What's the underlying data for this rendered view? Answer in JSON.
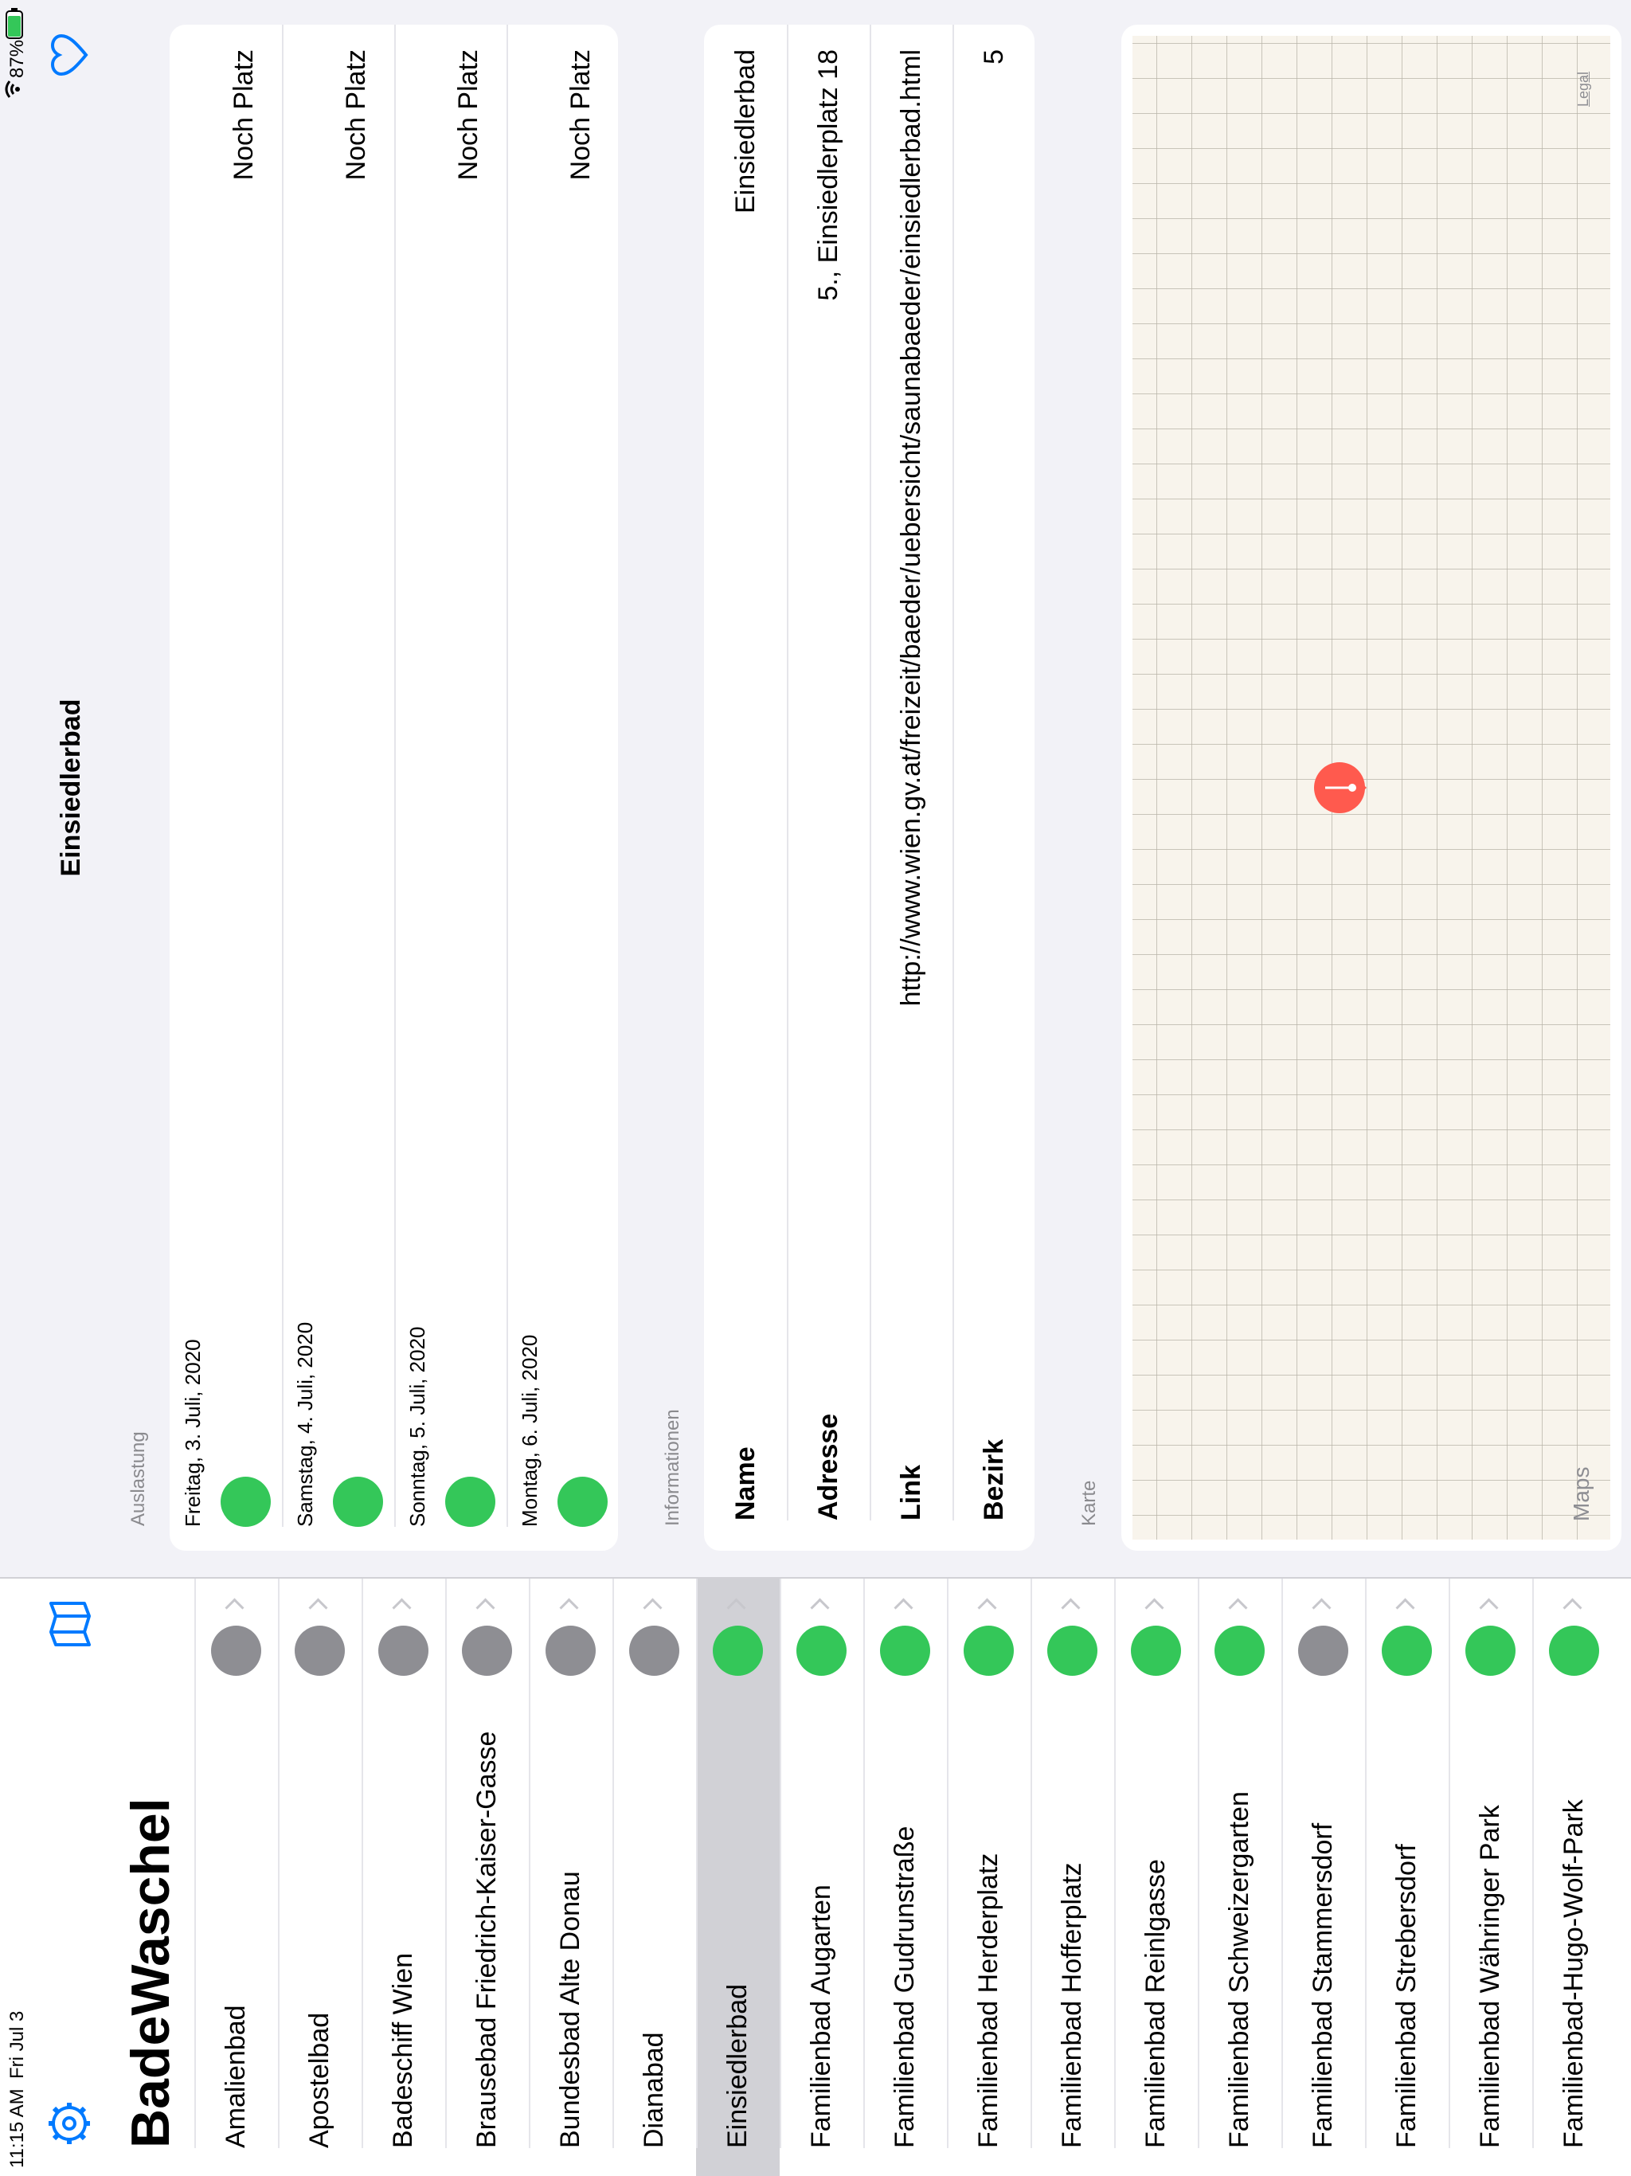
{
  "status_bar": {
    "time": "11:15 AM",
    "date": "Fri Jul 3",
    "battery": "87%"
  },
  "sidebar": {
    "title": "BadeWaschel",
    "items": [
      {
        "name": "Amalienbad",
        "color": "#8e8e93"
      },
      {
        "name": "Apostelbad",
        "color": "#8e8e93"
      },
      {
        "name": "Badeschiff Wien",
        "color": "#8e8e93"
      },
      {
        "name": "Brausebad Friedrich-Kaiser-Gasse",
        "color": "#8e8e93"
      },
      {
        "name": "Bundesbad Alte Donau",
        "color": "#8e8e93"
      },
      {
        "name": "Dianabad",
        "color": "#8e8e93"
      },
      {
        "name": "Einsiedlerbad",
        "color": "#34c759",
        "selected": true
      },
      {
        "name": "Familienbad Augarten",
        "color": "#34c759"
      },
      {
        "name": "Familienbad Gudrunstraße",
        "color": "#34c759"
      },
      {
        "name": "Familienbad Herderplatz",
        "color": "#34c759"
      },
      {
        "name": "Familienbad Hofferplatz",
        "color": "#34c759"
      },
      {
        "name": "Familienbad Reinlgasse",
        "color": "#34c759"
      },
      {
        "name": "Familienbad Schweizergarten",
        "color": "#34c759"
      },
      {
        "name": "Familienbad Stammersdorf",
        "color": "#8e8e93"
      },
      {
        "name": "Familienbad Strebersdorf",
        "color": "#34c759"
      },
      {
        "name": "Familienbad Währinger Park",
        "color": "#34c759"
      },
      {
        "name": "Familienbad-Hugo-Wolf-Park",
        "color": "#34c759"
      }
    ]
  },
  "detail": {
    "title": "Einsiedlerbad",
    "auslastung": {
      "header": "Auslastung",
      "days": [
        {
          "date": "Freitag, 3. Juli, 2020",
          "status": "Noch Platz",
          "color": "#34c759"
        },
        {
          "date": "Samstag, 4. Juli, 2020",
          "status": "Noch Platz",
          "color": "#34c759"
        },
        {
          "date": "Sonntag, 5. Juli, 2020",
          "status": "Noch Platz",
          "color": "#34c759"
        },
        {
          "date": "Montag, 6. Juli, 2020",
          "status": "Noch Platz",
          "color": "#34c759"
        }
      ]
    },
    "informationen": {
      "header": "Informationen",
      "rows": [
        {
          "label": "Name",
          "value": "Einsiedlerbad"
        },
        {
          "label": "Adresse",
          "value": "5., Einsiedlerplatz 18"
        },
        {
          "label": "Link",
          "value": "http://www.wien.gv.at/freizeit/baeder/uebersicht/saunabaeder/einsiedlerbad.html"
        },
        {
          "label": "Bezirk",
          "value": "5"
        }
      ]
    },
    "karte": {
      "header": "Karte",
      "attribution": "Maps",
      "legal": "Legal"
    }
  }
}
